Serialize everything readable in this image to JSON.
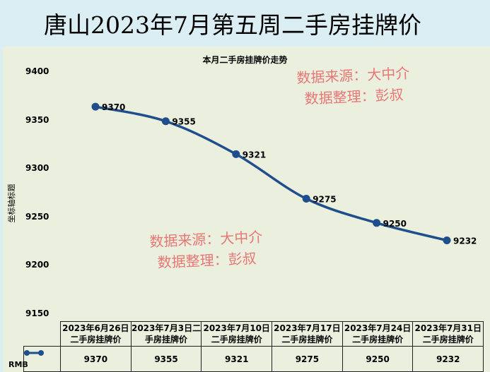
{
  "header": {
    "title": "唐山2023年7月第五周二手房挂牌价"
  },
  "watermark": {
    "line1": "数据来源：大中介",
    "line2": "数据整理：彭叔"
  },
  "chart_data": {
    "type": "line",
    "title": "本月二手房挂牌价走势",
    "ylabel": "坐标轴标题",
    "xlabel": "",
    "ylim": [
      9150,
      9400
    ],
    "yticks": [
      "9400",
      "9350",
      "9300",
      "9250",
      "9200",
      "9150"
    ],
    "categories": [
      "2023年6月26日二手房挂牌价",
      "2023年7月3日二手房挂牌价",
      "2023年7月10日二手房挂牌价",
      "2023年7月17日二手房挂牌价",
      "2023年7月24日二手房挂牌价",
      "2023年7月31日二手房挂牌价"
    ],
    "series": [
      {
        "name": "RMB",
        "values": [
          9370,
          9355,
          9321,
          9275,
          9250,
          9232
        ],
        "color": "#1f4e8c"
      }
    ],
    "data_labels": true,
    "data_table": true,
    "grid": false
  }
}
